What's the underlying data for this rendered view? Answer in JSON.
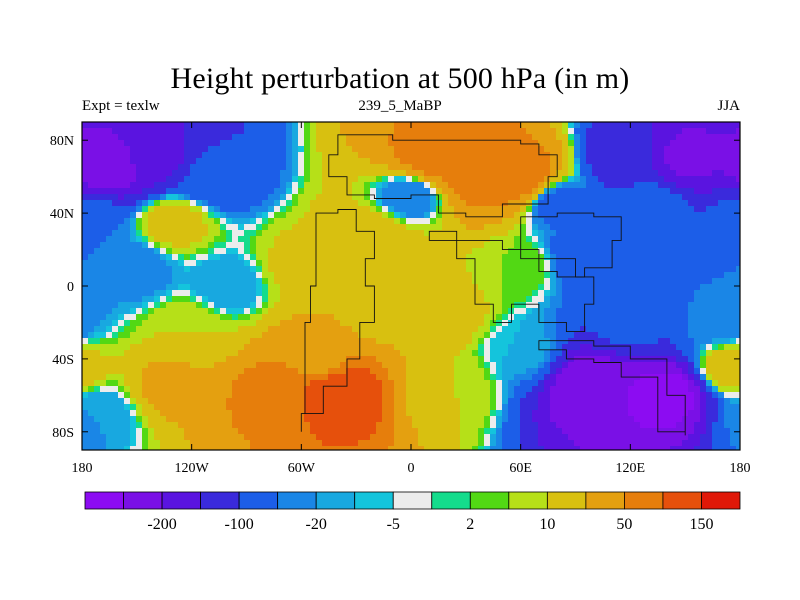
{
  "title": "Height perturbation at 500 hPa (in m)",
  "left_string": "Expt = texlw",
  "center_string": "239_5_MaBP",
  "right_string": "JJA",
  "chart_data": {
    "type": "heatmap",
    "title": "Height perturbation at 500 hPa (in m)",
    "xlabel": "",
    "ylabel": "",
    "xlim": [
      -180,
      180
    ],
    "ylim": [
      -90,
      90
    ],
    "x_ticks": [
      {
        "value": -180,
        "label": "180"
      },
      {
        "value": -120,
        "label": "120W"
      },
      {
        "value": -60,
        "label": "60W"
      },
      {
        "value": 0,
        "label": "0"
      },
      {
        "value": 60,
        "label": "60E"
      },
      {
        "value": 120,
        "label": "120E"
      },
      {
        "value": 180,
        "label": "180"
      }
    ],
    "y_ticks": [
      {
        "value": 80,
        "label": "80N"
      },
      {
        "value": 40,
        "label": "40N"
      },
      {
        "value": 0,
        "label": "0"
      },
      {
        "value": -40,
        "label": "40S"
      },
      {
        "value": -80,
        "label": "80S"
      }
    ],
    "colorbar": {
      "colors": [
        "#8c0cf2",
        "#7a10e6",
        "#5a14e0",
        "#3a2adc",
        "#1c5ee8",
        "#1a86e6",
        "#18a8e0",
        "#14c4dc",
        "#ececec",
        "#14dc8c",
        "#52d814",
        "#b6e018",
        "#d8c010",
        "#e4a010",
        "#e67e0c",
        "#e6500c",
        "#e01808"
      ],
      "levels": [
        -300,
        -200,
        -150,
        -100,
        -50,
        -20,
        -10,
        -5,
        -2,
        2,
        5,
        10,
        20,
        50,
        100,
        150,
        200,
        300
      ],
      "labels": [
        {
          "after_box": 1,
          "text": "-200"
        },
        {
          "after_box": 3,
          "text": "-100"
        },
        {
          "after_box": 5,
          "text": "-20"
        },
        {
          "after_box": 7,
          "text": "-5"
        },
        {
          "after_box": 9,
          "text": "2"
        },
        {
          "after_box": 11,
          "text": "10"
        },
        {
          "after_box": 13,
          "text": "50"
        },
        {
          "after_box": 15,
          "text": "150"
        }
      ]
    },
    "field_features": [
      {
        "lon": -165,
        "lat": 65,
        "value": -180
      },
      {
        "lon": -140,
        "lat": 70,
        "value": -120
      },
      {
        "lon": -110,
        "lat": 60,
        "value": -40
      },
      {
        "lon": -130,
        "lat": 35,
        "value": 30
      },
      {
        "lon": -150,
        "lat": 10,
        "value": -15
      },
      {
        "lon": -100,
        "lat": 0,
        "value": -10
      },
      {
        "lon": -120,
        "lat": -25,
        "value": 20
      },
      {
        "lon": -60,
        "lat": 10,
        "value": 25
      },
      {
        "lon": -20,
        "lat": 25,
        "value": 40
      },
      {
        "lon": 10,
        "lat": 70,
        "value": 120
      },
      {
        "lon": 35,
        "lat": 62,
        "value": 140
      },
      {
        "lon": 60,
        "lat": 60,
        "value": 130
      },
      {
        "lon": 0,
        "lat": 50,
        "value": -20
      },
      {
        "lon": 80,
        "lat": 45,
        "value": -25
      },
      {
        "lon": 130,
        "lat": 45,
        "value": -30
      },
      {
        "lon": 150,
        "lat": 70,
        "value": -160
      },
      {
        "lon": 120,
        "lat": 70,
        "value": -80
      },
      {
        "lon": 95,
        "lat": 15,
        "value": -40
      },
      {
        "lon": 60,
        "lat": 10,
        "value": 10
      },
      {
        "lon": 20,
        "lat": -15,
        "value": 30
      },
      {
        "lon": -20,
        "lat": -15,
        "value": 40
      },
      {
        "lon": -50,
        "lat": -40,
        "value": 90
      },
      {
        "lon": -40,
        "lat": -58,
        "value": 200
      },
      {
        "lon": -80,
        "lat": -60,
        "value": 110
      },
      {
        "lon": -130,
        "lat": -55,
        "value": 60
      },
      {
        "lon": -170,
        "lat": -70,
        "value": -10
      },
      {
        "lon": 20,
        "lat": -55,
        "value": 20
      },
      {
        "lon": 60,
        "lat": -35,
        "value": -5
      },
      {
        "lon": 100,
        "lat": -55,
        "value": -200
      },
      {
        "lon": 140,
        "lat": -60,
        "value": -220
      },
      {
        "lon": 120,
        "lat": -20,
        "value": -40
      },
      {
        "lon": 170,
        "lat": -20,
        "value": -15
      },
      {
        "lon": 175,
        "lat": -45,
        "value": 30
      },
      {
        "lon": -175,
        "lat": 35,
        "value": -20
      }
    ]
  }
}
